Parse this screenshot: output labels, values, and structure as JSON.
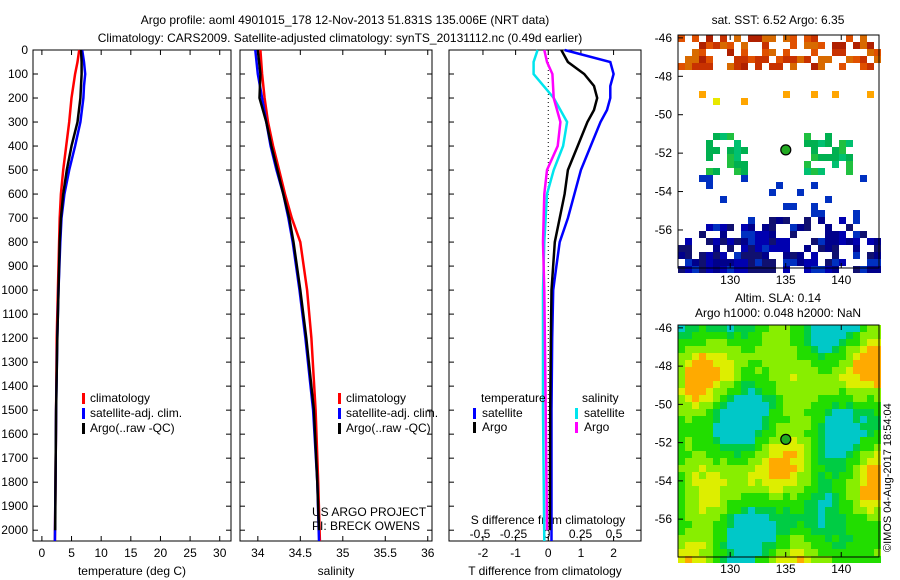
{
  "title_line1": "Argo profile: aoml 4901015_178 12-Nov-2013 51.831S 135.006E (NRT data)",
  "title_line2": "Climatology: CARS2009. Satellite-adjusted climatology: synTS_20131112.nc (0.49d earlier)",
  "credit": "US ARGO PROJECT",
  "pi": "PI: BRECK OWENS",
  "watermark": "©IMOS 04-Aug-2017 18:54:04",
  "colors": {
    "climatology": "#ff0000",
    "satellite": "#0000ff",
    "argo": "#000000",
    "sal_satellite": "#00e5ee",
    "sal_argo": "#ff00ff"
  },
  "chart_data": [
    {
      "type": "line",
      "name": "temperature",
      "xlabel": "temperature (deg C)",
      "ylabel": "",
      "xlim": [
        -1.5,
        31.9
      ],
      "ylim": [
        2045,
        0
      ],
      "xticks": [
        0,
        5,
        10,
        15,
        20,
        25,
        30
      ],
      "yticks": [
        0,
        100,
        200,
        300,
        400,
        500,
        600,
        700,
        800,
        900,
        1000,
        1100,
        1200,
        1300,
        1400,
        1500,
        1600,
        1700,
        1800,
        1900,
        2000
      ],
      "legend": [
        "climatology",
        "satellite-adj. clim.",
        "Argo(..raw -QC)"
      ],
      "series": [
        {
          "name": "climatology",
          "color": "#ff0000",
          "depth": [
            0,
            50,
            100,
            200,
            300,
            400,
            500,
            600,
            700,
            800,
            1000,
            1200,
            1500,
            1800,
            2045
          ],
          "values": [
            6.3,
            6.0,
            5.6,
            5.0,
            4.6,
            4.1,
            3.6,
            3.2,
            3.0,
            2.9,
            2.7,
            2.5,
            2.4,
            2.3,
            2.2
          ]
        },
        {
          "name": "satellite-adj. clim.",
          "color": "#0000ff",
          "depth": [
            0,
            50,
            100,
            150,
            200,
            300,
            400,
            500,
            600,
            700,
            800,
            1000,
            1200,
            1500,
            1800,
            2045
          ],
          "values": [
            6.8,
            7.1,
            7.3,
            7.1,
            7.0,
            6.5,
            5.6,
            4.6,
            3.8,
            3.3,
            3.1,
            2.8,
            2.6,
            2.4,
            2.3,
            2.2
          ]
        },
        {
          "name": "Argo(..raw -QC)",
          "color": "#000000",
          "depth": [
            0,
            50,
            100,
            200,
            300,
            400,
            500,
            600,
            700,
            800,
            1000,
            1200,
            1500,
            1800,
            2000
          ],
          "values": [
            6.6,
            6.7,
            6.7,
            6.5,
            6.0,
            5.0,
            4.2,
            3.6,
            3.2,
            3.0,
            2.8,
            2.6,
            2.4,
            2.3,
            2.25
          ]
        }
      ]
    },
    {
      "type": "line",
      "name": "salinity",
      "xlabel": "salinity",
      "ylabel": "",
      "xlim": [
        33.79,
        36.05
      ],
      "ylim": [
        2045,
        0
      ],
      "xticks": [
        34,
        34.5,
        35,
        35.5,
        36
      ],
      "legend": [
        "climatology",
        "satellite-adj. clim.",
        "Argo(..raw -QC)"
      ],
      "series": [
        {
          "name": "climatology",
          "color": "#ff0000",
          "depth": [
            0,
            100,
            200,
            300,
            400,
            500,
            600,
            700,
            800,
            1000,
            1200,
            1500,
            1800,
            2045
          ],
          "values": [
            34.03,
            34.05,
            34.08,
            34.12,
            34.18,
            34.25,
            34.32,
            34.4,
            34.5,
            34.58,
            34.63,
            34.68,
            34.71,
            34.73
          ]
        },
        {
          "name": "satellite-adj. clim.",
          "color": "#0000ff",
          "depth": [
            0,
            100,
            200,
            300,
            400,
            500,
            600,
            700,
            800,
            1000,
            1200,
            1500,
            1800,
            2045
          ],
          "values": [
            33.97,
            34.0,
            34.05,
            34.1,
            34.15,
            34.22,
            34.3,
            34.36,
            34.41,
            34.49,
            34.56,
            34.65,
            34.7,
            34.72
          ]
        },
        {
          "name": "Argo(..raw -QC)",
          "color": "#000000",
          "depth": [
            0,
            100,
            200,
            300,
            400,
            500,
            600,
            700,
            800,
            1000,
            1200,
            1500,
            1800,
            2000
          ],
          "values": [
            34.0,
            34.03,
            34.02,
            34.1,
            34.16,
            34.23,
            34.3,
            34.37,
            34.42,
            34.5,
            34.57,
            34.66,
            34.7,
            34.72
          ]
        }
      ]
    },
    {
      "type": "line",
      "name": "differences",
      "xlabel": "T difference from climatology",
      "x2label": "S difference from climatology",
      "xlim": [
        -3.04,
        2.84
      ],
      "ylim": [
        2045,
        0
      ],
      "xticks": [
        -2,
        -1,
        0,
        1,
        2
      ],
      "x2ticks": [
        -0.5,
        -0.25,
        0,
        0.25,
        0.5
      ],
      "x2tick_labels": [
        "-0.5",
        "-0.25",
        "0",
        "0.25",
        "0.5"
      ],
      "legend_titles": [
        "temperature",
        "salinity"
      ],
      "legend": [
        "satellite",
        "Argo",
        "satellite",
        "Argo"
      ],
      "series": [
        {
          "name": "T satellite",
          "color": "#0000ff",
          "units": "T",
          "depth": [
            0,
            50,
            100,
            150,
            200,
            250,
            300,
            400,
            500,
            600,
            700,
            800,
            900,
            1000,
            1200,
            1500,
            2045
          ],
          "values": [
            0.5,
            1.9,
            2.0,
            1.9,
            1.9,
            1.8,
            1.6,
            1.3,
            1.0,
            0.8,
            0.6,
            0.35,
            0.25,
            0.15,
            0.12,
            0.1,
            0.1
          ]
        },
        {
          "name": "T Argo",
          "color": "#000000",
          "units": "T",
          "depth": [
            0,
            50,
            100,
            150,
            200,
            250,
            300,
            400,
            500,
            600,
            700,
            800,
            1000,
            1200,
            1500,
            2000
          ],
          "values": [
            0.4,
            0.6,
            1.1,
            1.4,
            1.5,
            1.4,
            1.2,
            0.9,
            0.6,
            0.5,
            0.35,
            0.2,
            0.1,
            0.08,
            0.06,
            0.05
          ]
        },
        {
          "name": "S satellite",
          "color": "#00e5ee",
          "units": "S",
          "depth": [
            0,
            50,
            100,
            200,
            300,
            400,
            500,
            600,
            800,
            1000,
            1500,
            2045
          ],
          "values": [
            -0.07,
            -0.1,
            -0.1,
            0.05,
            0.15,
            0.12,
            0.05,
            0.0,
            -0.02,
            -0.03,
            -0.03,
            -0.02
          ]
        },
        {
          "name": "S Argo",
          "color": "#ff00ff",
          "units": "S",
          "depth": [
            0,
            50,
            100,
            200,
            300,
            400,
            500,
            600,
            800,
            1000,
            1500,
            2000
          ],
          "values": [
            -0.02,
            0.0,
            0.04,
            0.05,
            0.1,
            0.08,
            0.0,
            -0.02,
            -0.03,
            -0.02,
            -0.01,
            0.0
          ]
        }
      ]
    },
    {
      "type": "heatmap",
      "name": "sst_map",
      "title": "sat. SST: 6.52  Argo: 6.35",
      "xlim": [
        125.3,
        143.4
      ],
      "ylim": [
        -57.98,
        -45.85
      ],
      "xticks": [
        130,
        135,
        140
      ],
      "yticks": [
        -46,
        -48,
        -50,
        -52,
        -54,
        -56
      ],
      "marker": {
        "lon": 135.006,
        "lat": -51.831
      }
    },
    {
      "type": "heatmap",
      "name": "sla_map",
      "title": "Altim. SLA: 0.14",
      "subtitle": "Argo h1000: 0.048 h2000: NaN",
      "xlim": [
        125.3,
        143.4
      ],
      "ylim": [
        -57.98,
        -45.85
      ],
      "xticks": [
        130,
        135,
        140
      ],
      "yticks": [
        -46,
        -48,
        -50,
        -52,
        -54,
        -56
      ],
      "marker": {
        "lon": 135.006,
        "lat": -51.831
      }
    }
  ]
}
